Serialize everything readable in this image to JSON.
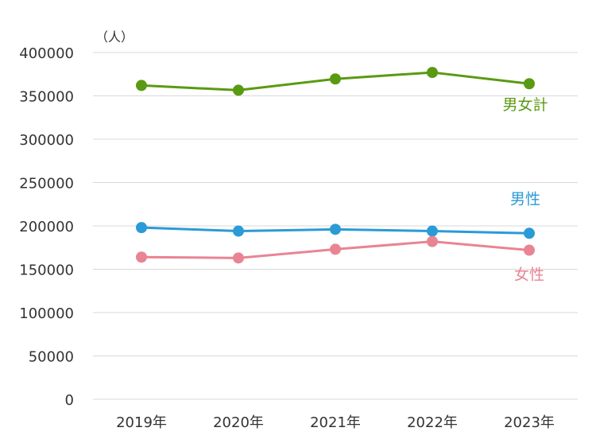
{
  "chart_data": {
    "type": "line",
    "unit_label": "（人）",
    "categories": [
      "2019年",
      "2020年",
      "2021年",
      "2022年",
      "2023年"
    ],
    "ylim": [
      0,
      400000
    ],
    "y_ticks": [
      "0",
      "50000",
      "100000",
      "150000",
      "200000",
      "250000",
      "300000",
      "350000",
      "400000"
    ],
    "grid": true,
    "series": [
      {
        "name": "男女計",
        "color": "#5a9a12",
        "values": [
          362000,
          356500,
          369500,
          377000,
          364000
        ]
      },
      {
        "name": "男性",
        "color": "#2a9bd6",
        "values": [
          198000,
          194000,
          196000,
          194000,
          191500
        ]
      },
      {
        "name": "女性",
        "color": "#e98493",
        "values": [
          164000,
          163000,
          173000,
          182000,
          172000
        ]
      }
    ]
  }
}
